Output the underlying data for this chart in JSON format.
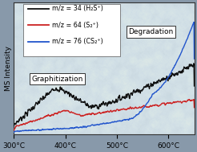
{
  "ylabel": "MS Intensity",
  "xlim": [
    300,
    650
  ],
  "xtick_labels": [
    "300°C",
    "400°C",
    "500°C",
    "600°C"
  ],
  "xtick_positions": [
    300,
    400,
    500,
    600
  ],
  "outer_bg_color": "#8899aa",
  "plot_bg_color": "#c8d8e0",
  "line_colors": [
    "#111111",
    "#cc2222",
    "#2255cc"
  ],
  "legend_texts": [
    "m/z = 34 (H₂S⁺)",
    "m/z = 64 (S₂⁺)",
    "m/z = 76 (CS₂⁺)"
  ],
  "annotation_graphitization": "Graphitization",
  "annotation_degradation": "Degradation"
}
